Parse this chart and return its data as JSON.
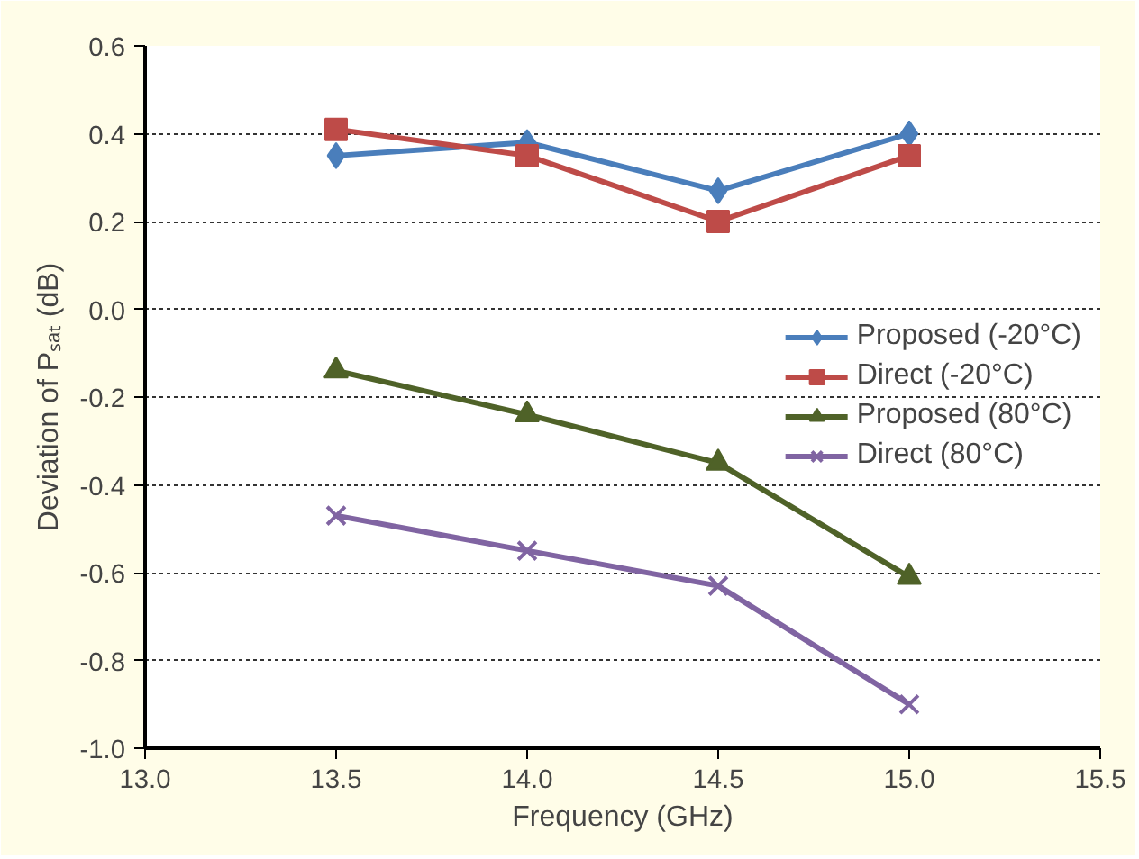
{
  "chart_data": {
    "type": "line",
    "xlabel": "Frequency (GHz)",
    "ylabel": "Deviation of Pₛₐₜ (dB)",
    "x": [
      13.5,
      14.0,
      14.5,
      15.0
    ],
    "series": [
      {
        "name": "Proposed (-20°C)",
        "color": "#4a7ebb",
        "marker": "diamond",
        "values": [
          0.35,
          0.38,
          0.27,
          0.4
        ]
      },
      {
        "name": "Direct (-20°C)",
        "color": "#be4b48",
        "marker": "square",
        "values": [
          0.41,
          0.35,
          0.2,
          0.35
        ]
      },
      {
        "name": "Proposed (80°C)",
        "color": "#4f6228",
        "marker": "triangle",
        "values": [
          -0.14,
          -0.24,
          -0.35,
          -0.61
        ]
      },
      {
        "name": "Direct (80°C)",
        "color": "#8064a2",
        "marker": "cross",
        "values": [
          -0.47,
          -0.55,
          -0.63,
          -0.9
        ]
      }
    ],
    "xlim": [
      13.0,
      15.5
    ],
    "xticks": [
      {
        "value": 13.0,
        "label": "13.0"
      },
      {
        "value": 13.5,
        "label": "13.5"
      },
      {
        "value": 14.0,
        "label": "14.0"
      },
      {
        "value": 14.5,
        "label": "14.5"
      },
      {
        "value": 15.0,
        "label": "15.0"
      },
      {
        "value": 15.5,
        "label": "15.5"
      }
    ],
    "ylim": [
      -1.0,
      0.6
    ],
    "yticks": [
      {
        "value": -1.0,
        "label": "-1.0"
      },
      {
        "value": -0.8,
        "label": "-0.8"
      },
      {
        "value": -0.6,
        "label": "-0.6"
      },
      {
        "value": -0.4,
        "label": "-0.4"
      },
      {
        "value": -0.2,
        "label": "-0.2"
      },
      {
        "value": 0.0,
        "label": "0.0"
      },
      {
        "value": 0.2,
        "label": "0.2"
      },
      {
        "value": 0.4,
        "label": "0.4"
      },
      {
        "value": 0.6,
        "label": "0.6"
      }
    ],
    "grid": "y",
    "legend": "right",
    "line_style": "solid"
  }
}
